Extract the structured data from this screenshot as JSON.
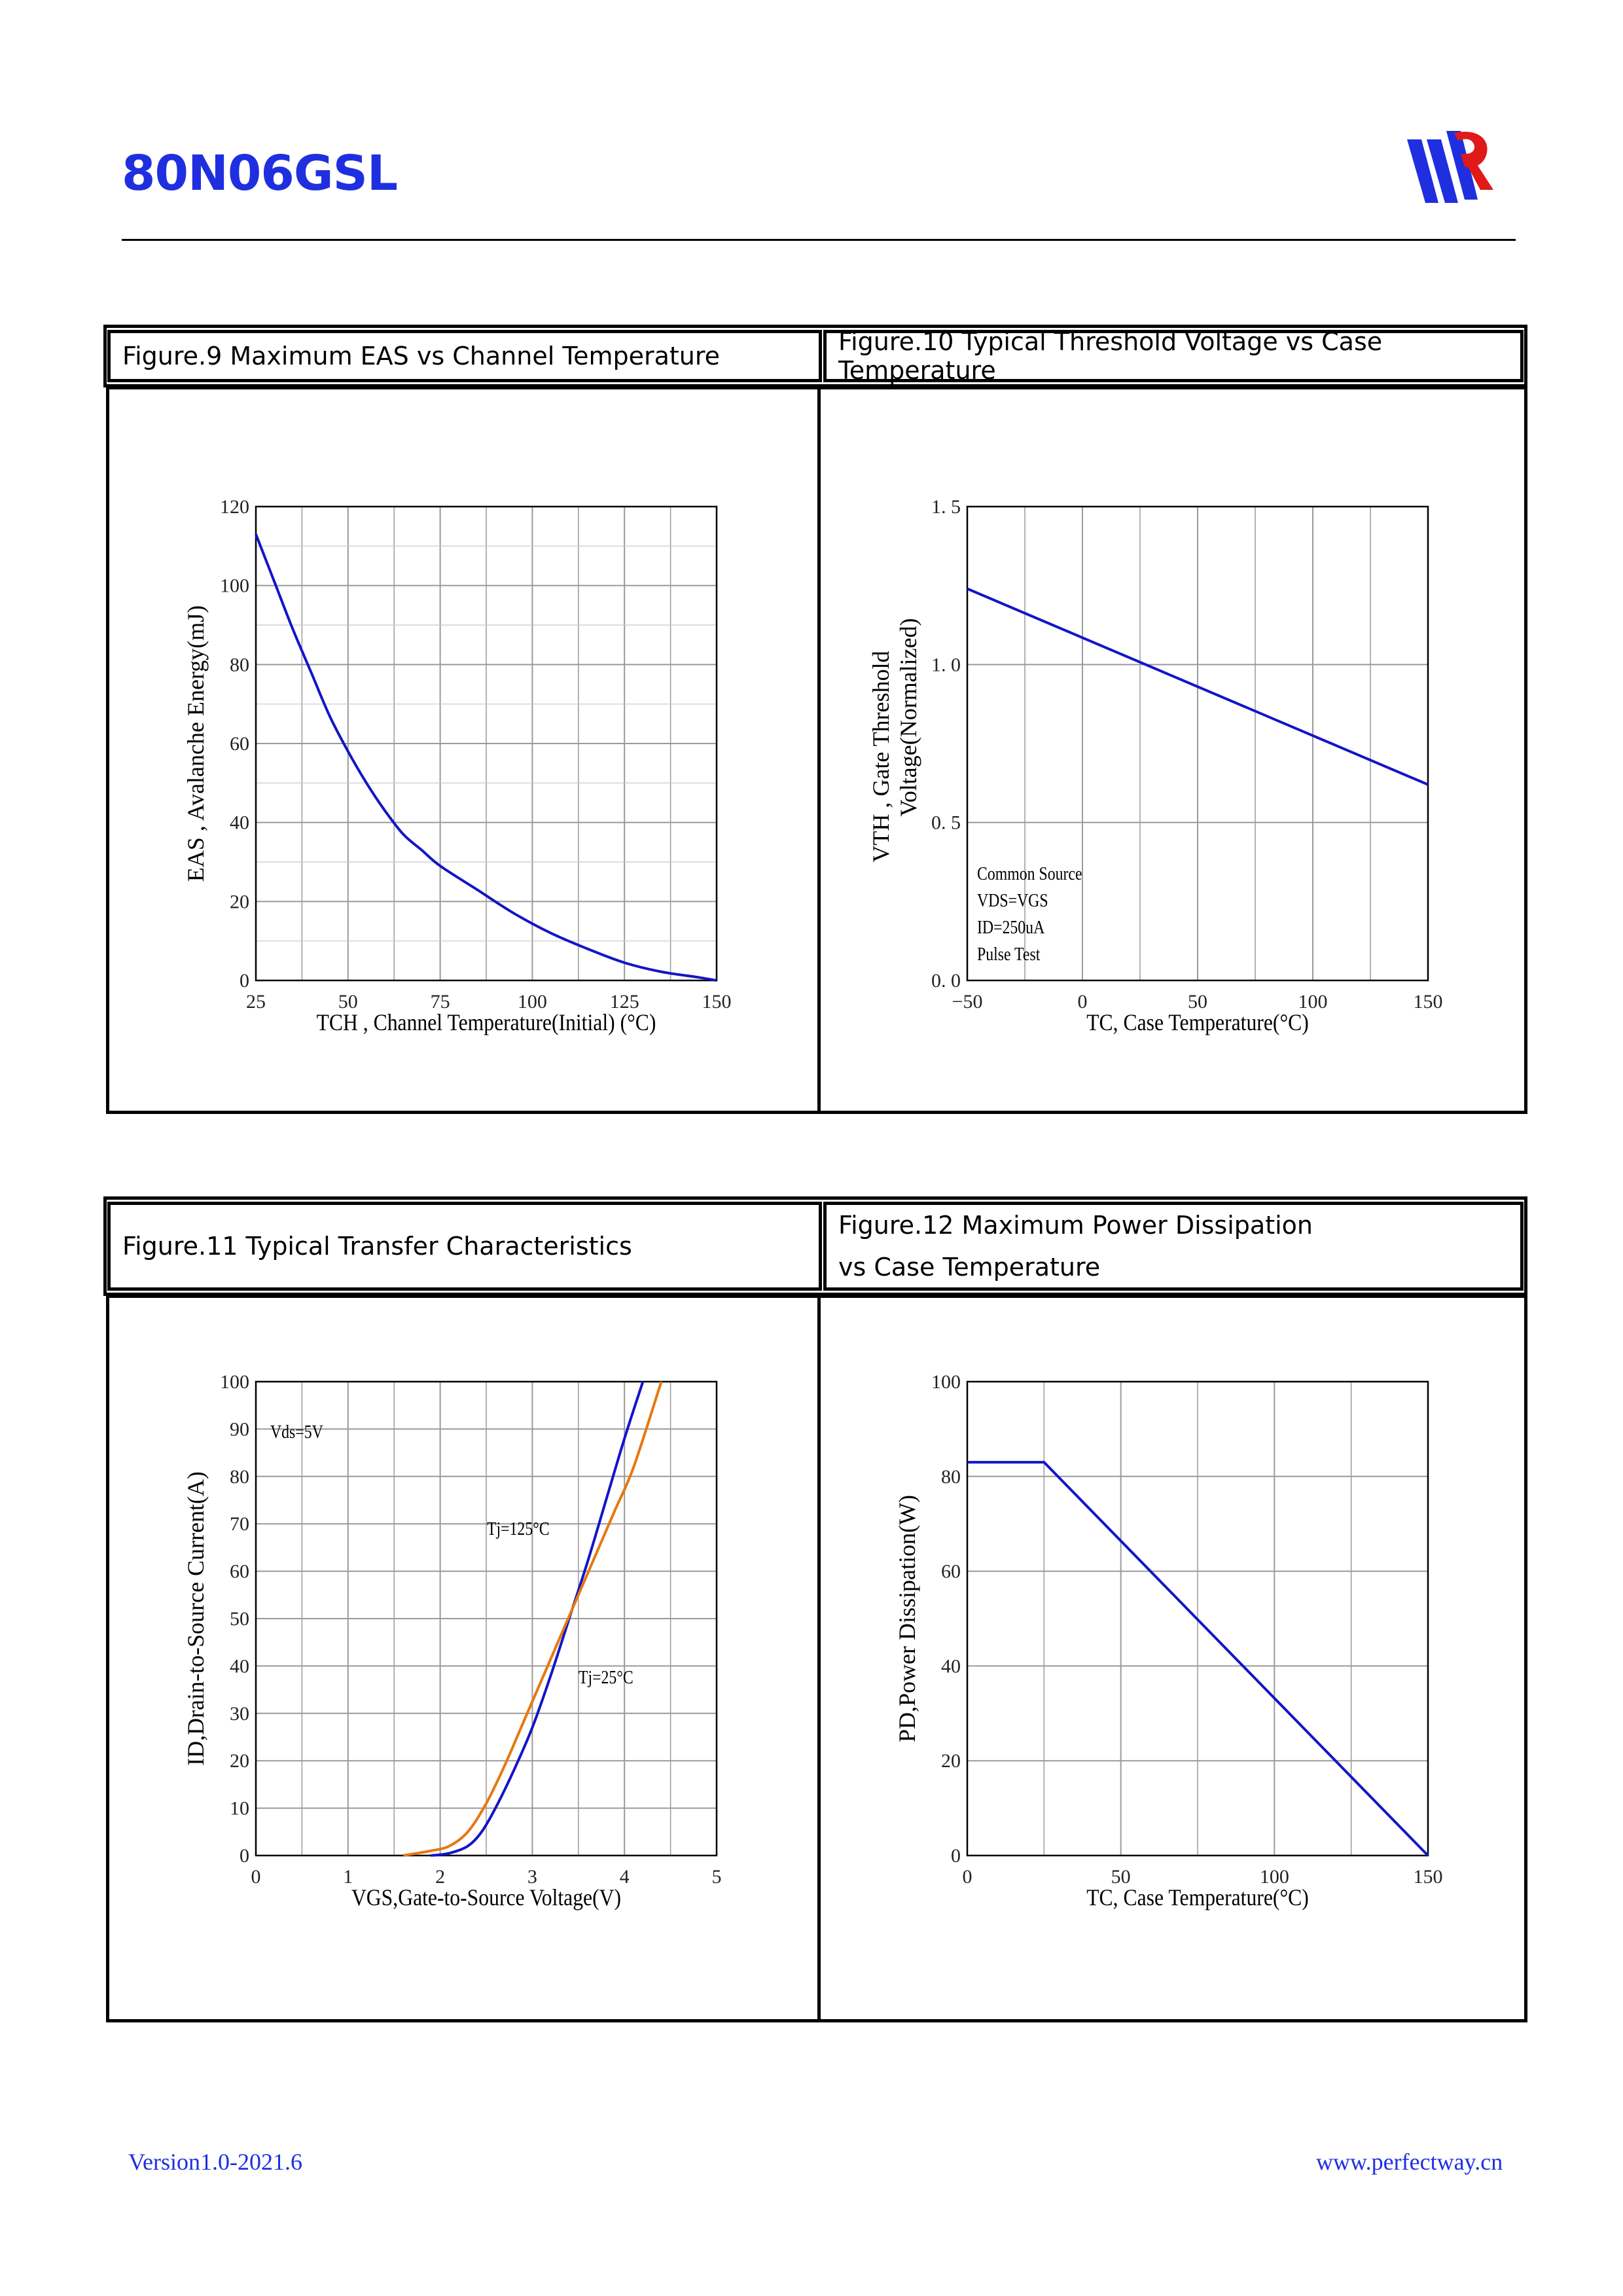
{
  "header": {
    "title": "80N06GSL"
  },
  "footer": {
    "version": "Version1.0-2021.6",
    "website": "www.perfectway.cn"
  },
  "colors": {
    "title": "#1f2fe0",
    "series_blue": "#1414c8",
    "series_orange": "#e6780f",
    "grid": "#9a9a9a"
  },
  "figures": {
    "fig9": {
      "caption": "Figure.9 Maximum EAS vs Channel Temperature"
    },
    "fig10": {
      "caption": "Figure.10 Typical Threshold Voltage vs Case Temperature"
    },
    "fig11": {
      "caption": "Figure.11 Typical Transfer Characteristics"
    },
    "fig12": {
      "caption_line1": "Figure.12 Maximum Power Dissipation",
      "caption_line2": "vs Case Temperature"
    }
  },
  "chart_data": [
    {
      "id": "fig9",
      "type": "line",
      "title": "Figure.9 Maximum EAS vs Channel Temperature",
      "xlabel": "TCH , Channel Temperature(Initial) (°C)",
      "ylabel": "EAS , Avalanche Energy(mJ)",
      "xlim": [
        25,
        150
      ],
      "ylim": [
        0,
        120
      ],
      "xticks": [
        25,
        50,
        75,
        100,
        125,
        150
      ],
      "yticks": [
        0,
        20,
        40,
        60,
        80,
        100,
        120
      ],
      "xtick_labels": [
        "25",
        "50",
        "75",
        "100",
        "125",
        "150"
      ],
      "ytick_labels": [
        "0",
        "20",
        "40",
        "60",
        "80",
        "100",
        "120"
      ],
      "annotations": [],
      "series": [
        {
          "name": "EAS",
          "color": "#1414c8",
          "x": [
            25,
            30,
            35,
            40,
            45,
            50,
            55,
            60,
            65,
            70,
            75,
            85,
            95,
            105,
            115,
            125,
            135,
            145,
            150
          ],
          "y": [
            113,
            101,
            89,
            78,
            67,
            58,
            50,
            43,
            37,
            33,
            29,
            23,
            17,
            12,
            8,
            4.5,
            2.2,
            0.8,
            0
          ]
        }
      ]
    },
    {
      "id": "fig10",
      "type": "line",
      "title": "Figure.10 Typical Threshold Voltage vs Case Temperature",
      "xlabel": "TC, Case Temperature(°C)",
      "ylabel": "VTH , Gate Threshold",
      "ylabel2": "Voltage(Normalized)",
      "xlim": [
        -50,
        150
      ],
      "ylim": [
        0,
        1.5
      ],
      "xticks": [
        -50,
        0,
        50,
        100,
        150
      ],
      "yticks": [
        0,
        0.5,
        1.0,
        1.5
      ],
      "xtick_labels": [
        "−50",
        "0",
        "50",
        "100",
        "150"
      ],
      "ytick_labels": [
        "0. 0",
        "0. 5",
        "1. 0",
        "1. 5"
      ],
      "annotations": [
        "Common Source",
        "VDS=VGS",
        "ID=250uA",
        "Pulse Test"
      ],
      "series": [
        {
          "name": "VTH",
          "color": "#1414c8",
          "x": [
            -50,
            150
          ],
          "y": [
            1.24,
            0.62
          ]
        }
      ]
    },
    {
      "id": "fig11",
      "type": "line",
      "title": "Figure.11 Typical Transfer Characteristics",
      "xlabel": "VGS,Gate-to-Source Voltage(V)",
      "ylabel": "ID,Drain-to-Source Current(A)",
      "xlim": [
        0,
        5
      ],
      "ylim": [
        0,
        100
      ],
      "xticks": [
        0,
        1,
        2,
        3,
        4,
        5
      ],
      "yticks": [
        0,
        10,
        20,
        30,
        40,
        50,
        60,
        70,
        80,
        90,
        100
      ],
      "xtick_labels": [
        "0",
        "1",
        "2",
        "3",
        "4",
        "5"
      ],
      "ytick_labels": [
        "0",
        "10",
        "20",
        "30",
        "40",
        "50",
        "60",
        "70",
        "80",
        "90",
        "100"
      ],
      "annotations": [
        "Vds=5V",
        "Tj=125°C",
        "Tj=25°C"
      ],
      "series": [
        {
          "name": "Tj=25°C",
          "color": "#1414c8",
          "x": [
            1.9,
            2.1,
            2.3,
            2.45,
            2.6,
            2.8,
            3.0,
            3.2,
            3.4,
            3.6,
            3.8,
            4.0,
            4.2
          ],
          "y": [
            0,
            0.5,
            2,
            5,
            10,
            18,
            27,
            38,
            50,
            62,
            75,
            88,
            100
          ]
        },
        {
          "name": "Tj=125°C",
          "color": "#e6780f",
          "x": [
            1.6,
            1.9,
            2.1,
            2.3,
            2.5,
            2.7,
            2.9,
            3.1,
            3.3,
            3.5,
            3.7,
            3.9,
            4.1,
            4.4
          ],
          "y": [
            0,
            1,
            2,
            5,
            11,
            19,
            28,
            37,
            46,
            55,
            64,
            73,
            82,
            100
          ]
        }
      ]
    },
    {
      "id": "fig12",
      "type": "line",
      "title": "Figure.12 Maximum Power Dissipation vs Case Temperature",
      "xlabel": "TC, Case Temperature(°C)",
      "ylabel": "PD,Power Dissipation(W)",
      "xlim": [
        0,
        150
      ],
      "ylim": [
        0,
        100
      ],
      "xticks": [
        0,
        50,
        100,
        150
      ],
      "yticks": [
        0,
        20,
        40,
        60,
        80,
        100
      ],
      "xtick_labels": [
        "0",
        "50",
        "100",
        "150"
      ],
      "ytick_labels": [
        "0",
        "20",
        "40",
        "60",
        "80",
        "100"
      ],
      "annotations": [],
      "series": [
        {
          "name": "PD",
          "color": "#1414c8",
          "x": [
            0,
            25,
            150
          ],
          "y": [
            83,
            83,
            0
          ]
        }
      ]
    }
  ]
}
